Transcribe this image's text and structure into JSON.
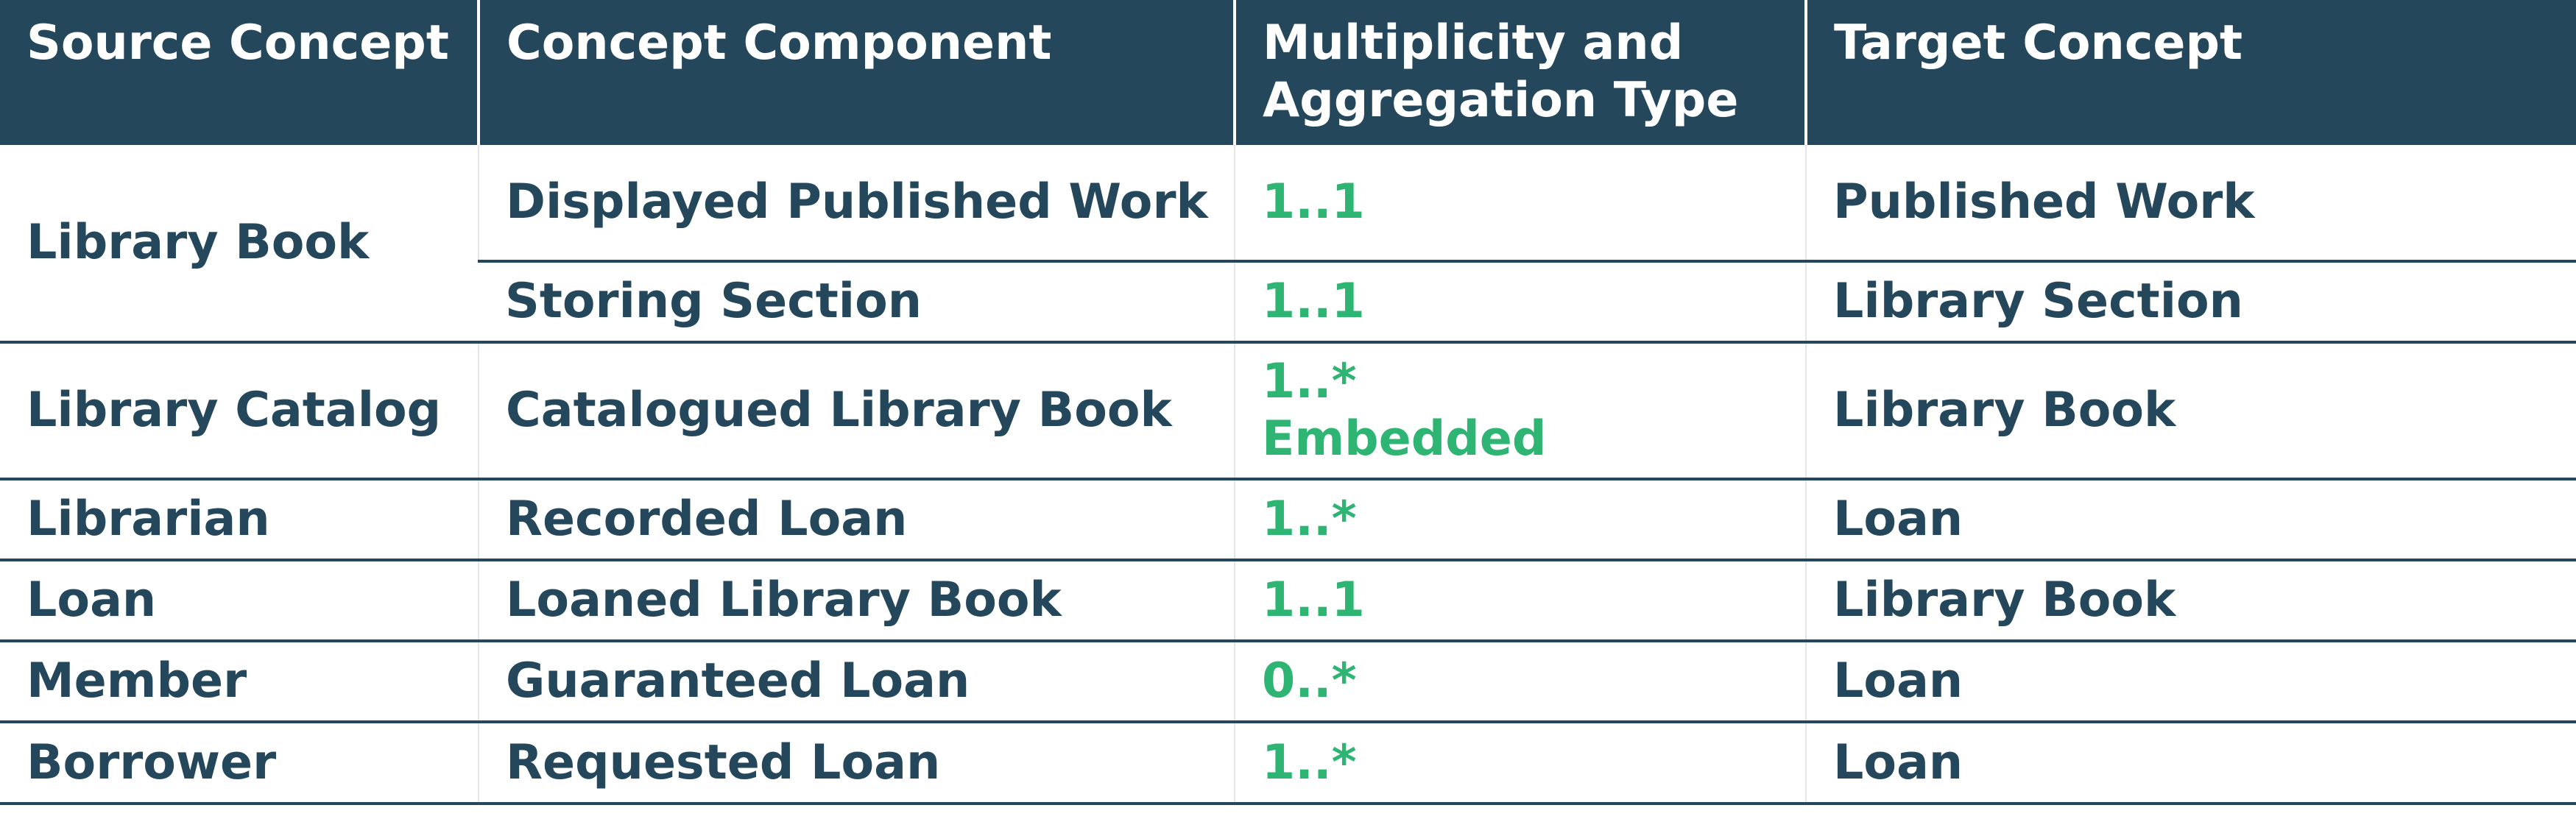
{
  "table": {
    "headers": [
      "Source Concept",
      "Concept Component",
      "Multiplicity and Aggregation Type",
      "Target Concept"
    ],
    "header_lines": {
      "col3_line1": "Multiplicity and",
      "col3_line2": "Aggregation Type"
    },
    "rows": [
      {
        "source": "Library Book",
        "component": "Displayed Published Work",
        "multiplicity": "1..1",
        "aggregation": "",
        "target": "Published Work"
      },
      {
        "source": "",
        "component": "Storing Section",
        "multiplicity": "1..1",
        "aggregation": "",
        "target": "Library Section"
      },
      {
        "source": "Library Catalog",
        "component": "Catalogued Library Book",
        "multiplicity": "1..*",
        "aggregation": "Embedded",
        "target": "Library Book"
      },
      {
        "source": "Librarian",
        "component": "Recorded Loan",
        "multiplicity": "1..*",
        "aggregation": "",
        "target": "Loan"
      },
      {
        "source": "Loan",
        "component": "Loaned Library Book",
        "multiplicity": "1..1",
        "aggregation": "",
        "target": "Library Book"
      },
      {
        "source": "Member",
        "component": "Guaranteed Loan",
        "multiplicity": "0..*",
        "aggregation": "",
        "target": "Loan"
      },
      {
        "source": "Borrower",
        "component": "Requested Loan",
        "multiplicity": "1..*",
        "aggregation": "",
        "target": "Loan"
      }
    ]
  },
  "colors": {
    "header_bg": "#25475c",
    "header_text": "#ffffff",
    "body_text": "#25475c",
    "multiplicity_text": "#2fb573",
    "row_border": "#25475c",
    "column_divider": "#e3e6ea"
  }
}
